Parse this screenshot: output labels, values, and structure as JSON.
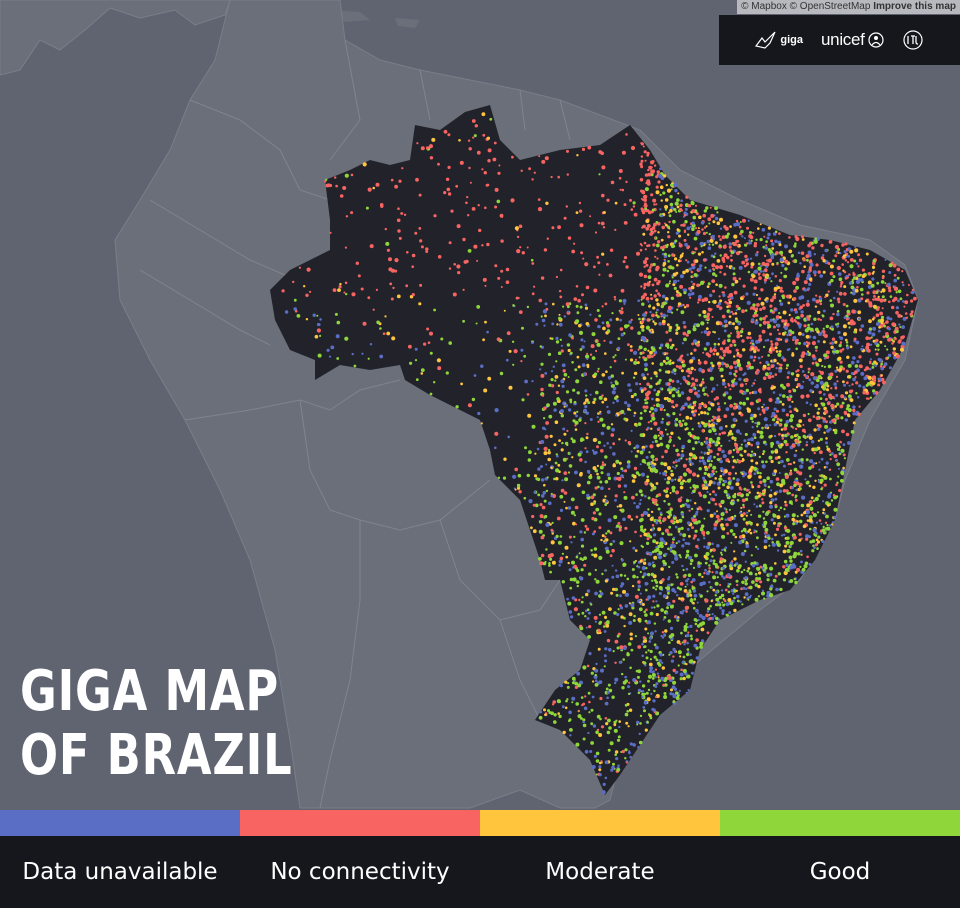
{
  "attribution": {
    "mapbox": "© Mapbox",
    "osm": "© OpenStreetMap",
    "improve": "Improve this map"
  },
  "logos": {
    "giga": "giga",
    "unicef": "unicef",
    "itu_icon": "itu-emblem-icon",
    "giga_icon": "giga-bird-icon",
    "unicef_icon": "unicef-emblem-icon"
  },
  "title": {
    "line1": "GIGA MAP",
    "line2": "OF BRAZIL"
  },
  "map": {
    "land_color": "#6b6f7a",
    "ocean_color": "#5f6470",
    "country_color": "#22232a"
  },
  "legend": [
    {
      "label": "Data unavailable",
      "color": "#5b6ec6"
    },
    {
      "label": "No connectivity",
      "color": "#f86462"
    },
    {
      "label": "Moderate",
      "color": "#ffc53d"
    },
    {
      "label": "Good",
      "color": "#8ed63a"
    }
  ]
}
